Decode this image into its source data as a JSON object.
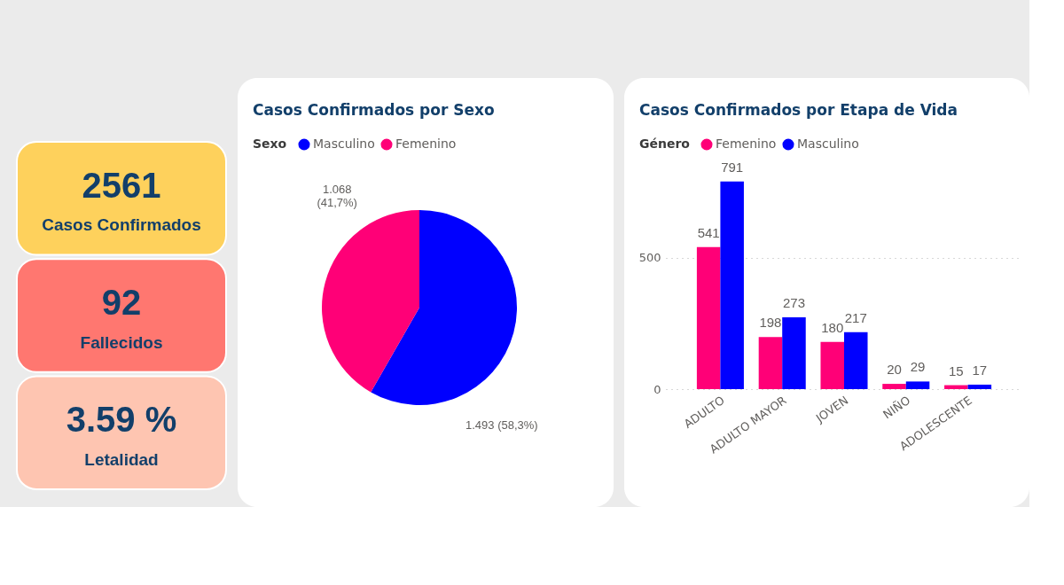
{
  "chart_data": [
    {
      "type": "other",
      "annotations": [
        "2561",
        "Casos Confirmados",
        "92",
        "Fallecidos",
        "3.59 %",
        "Letalidad"
      ],
      "colors": [
        "#fed15c",
        "#ff7770",
        "#fec5b1"
      ]
    },
    {
      "type": "pie",
      "title": "Casos Confirmados por Sexo",
      "legend_title": "Sexo",
      "legend": "top left",
      "categories": [
        "Masculino",
        "Femenino"
      ],
      "values": [
        1493,
        1068
      ],
      "colors": [
        "#0000ff",
        "#ff0077"
      ],
      "value_labels": [
        "1.493 (58,3%)",
        "1.068\n(41,7%)"
      ]
    },
    {
      "type": "bar",
      "title": "Casos Confirmados por Etapa de Vida",
      "legend_title": "Género",
      "legend": "top left",
      "categories": [
        "ADULTO",
        "ADULTO MAYOR",
        "JOVEN",
        "NIÑO",
        "ADOLESCENTE"
      ],
      "series": [
        {
          "name": "Femenino",
          "color": "#ff0077",
          "values": [
            541,
            198,
            180,
            20,
            15
          ]
        },
        {
          "name": "Masculino",
          "color": "#0000ff",
          "values": [
            791,
            273,
            217,
            29,
            17
          ]
        }
      ],
      "ylim": [
        0,
        800
      ],
      "yticks": [
        0,
        500
      ],
      "grid": "y",
      "data_labels": true
    }
  ]
}
